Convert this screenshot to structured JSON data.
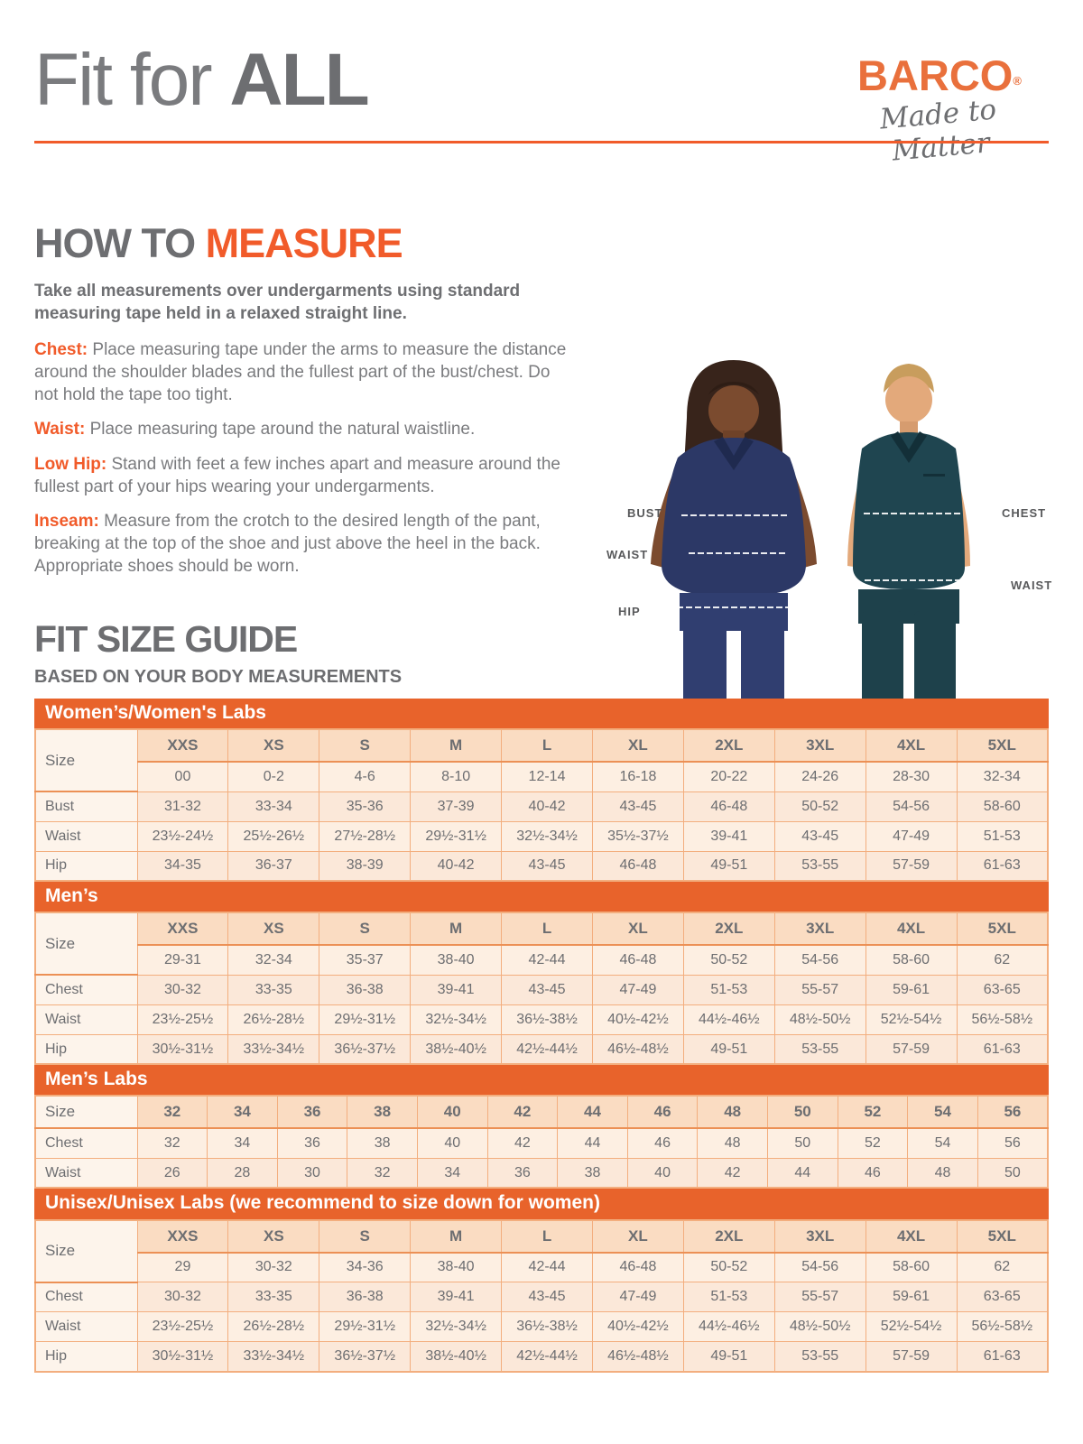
{
  "header": {
    "title_regular": "Fit for ",
    "title_bold": "ALL"
  },
  "logo": {
    "brand": "BARCO",
    "registered": "®",
    "tagline": "Made to Matter"
  },
  "how_to_measure": {
    "heading_gray": "HOW TO ",
    "heading_orange": "MEASURE",
    "intro": "Take all measurements over undergarments using standard measuring tape held in a relaxed straight line.",
    "items": [
      {
        "label": "Chest:",
        "text": "Place measuring tape under the arms to measure the distance around the shoulder blades and the fullest part of the bust/chest. Do not hold the tape too tight."
      },
      {
        "label": "Waist:",
        "text": "Place measuring tape around the natural waistline."
      },
      {
        "label": "Low Hip:",
        "text": "Stand with feet a few inches apart and measure around the fullest part of your hips wearing your undergarments."
      },
      {
        "label": "Inseam:",
        "text": "Measure from the crotch to the desired length of the pant, breaking at the top of the shoe and just above the heel in the back. Appropriate shoes should be worn."
      }
    ]
  },
  "figure": {
    "labels_left": [
      "BUST",
      "WAIST",
      "HIP"
    ],
    "labels_right": [
      "CHEST",
      "WAIST"
    ]
  },
  "size_guide": {
    "heading": "FIT SIZE GUIDE",
    "subheading": "BASED ON YOUR BODY MEASUREMENTS",
    "tables": [
      {
        "title": "Women’s/Women's Labs",
        "label_rowspan": true,
        "header": [
          "Size",
          "XXS",
          "XS",
          "S",
          "M",
          "L",
          "XL",
          "2XL",
          "3XL",
          "4XL",
          "5XL"
        ],
        "rows": [
          [
            "",
            "00",
            "0-2",
            "4-6",
            "8-10",
            "12-14",
            "16-18",
            "20-22",
            "24-26",
            "28-30",
            "32-34"
          ],
          [
            "Bust",
            "31-32",
            "33-34",
            "35-36",
            "37-39",
            "40-42",
            "43-45",
            "46-48",
            "50-52",
            "54-56",
            "58-60"
          ],
          [
            "Waist",
            "23½-24½",
            "25½-26½",
            "27½-28½",
            "29½-31½",
            "32½-34½",
            "35½-37½",
            "39-41",
            "43-45",
            "47-49",
            "51-53"
          ],
          [
            "Hip",
            "34-35",
            "36-37",
            "38-39",
            "40-42",
            "43-45",
            "46-48",
            "49-51",
            "53-55",
            "57-59",
            "61-63"
          ]
        ]
      },
      {
        "title": "Men’s",
        "label_rowspan": true,
        "header": [
          "Size",
          "XXS",
          "XS",
          "S",
          "M",
          "L",
          "XL",
          "2XL",
          "3XL",
          "4XL",
          "5XL"
        ],
        "rows": [
          [
            "",
            "29-31",
            "32-34",
            "35-37",
            "38-40",
            "42-44",
            "46-48",
            "50-52",
            "54-56",
            "58-60",
            "62"
          ],
          [
            "Chest",
            "30-32",
            "33-35",
            "36-38",
            "39-41",
            "43-45",
            "47-49",
            "51-53",
            "55-57",
            "59-61",
            "63-65"
          ],
          [
            "Waist",
            "23½-25½",
            "26½-28½",
            "29½-31½",
            "32½-34½",
            "36½-38½",
            "40½-42½",
            "44½-46½",
            "48½-50½",
            "52½-54½",
            "56½-58½"
          ],
          [
            "Hip",
            "30½-31½",
            "33½-34½",
            "36½-37½",
            "38½-40½",
            "42½-44½",
            "46½-48½",
            "49-51",
            "53-55",
            "57-59",
            "61-63"
          ]
        ]
      },
      {
        "title": "Men’s Labs",
        "label_rowspan": false,
        "header": [
          "Size",
          "32",
          "34",
          "36",
          "38",
          "40",
          "42",
          "44",
          "46",
          "48",
          "50",
          "52",
          "54",
          "56"
        ],
        "rows": [
          [
            "Chest",
            "32",
            "34",
            "36",
            "38",
            "40",
            "42",
            "44",
            "46",
            "48",
            "50",
            "52",
            "54",
            "56"
          ],
          [
            "Waist",
            "26",
            "28",
            "30",
            "32",
            "34",
            "36",
            "38",
            "40",
            "42",
            "44",
            "46",
            "48",
            "50"
          ]
        ]
      },
      {
        "title": "Unisex/Unisex Labs (we recommend to size down for women)",
        "label_rowspan": true,
        "header": [
          "Size",
          "XXS",
          "XS",
          "S",
          "M",
          "L",
          "XL",
          "2XL",
          "3XL",
          "4XL",
          "5XL"
        ],
        "rows": [
          [
            "",
            "29",
            "30-32",
            "34-36",
            "38-40",
            "42-44",
            "46-48",
            "50-52",
            "54-56",
            "58-60",
            "62"
          ],
          [
            "Chest",
            "30-32",
            "33-35",
            "36-38",
            "39-41",
            "43-45",
            "47-49",
            "51-53",
            "55-57",
            "59-61",
            "63-65"
          ],
          [
            "Waist",
            "23½-25½",
            "26½-28½",
            "29½-31½",
            "32½-34½",
            "36½-38½",
            "40½-42½",
            "44½-46½",
            "48½-50½",
            "52½-54½",
            "56½-58½"
          ],
          [
            "Hip",
            "30½-31½",
            "33½-34½",
            "36½-37½",
            "38½-40½",
            "42½-44½",
            "46½-48½",
            "49-51",
            "53-55",
            "57-59",
            "61-63"
          ]
        ]
      }
    ]
  },
  "colors": {
    "accent_orange": "#F15B2A",
    "banner_orange": "#E8632B",
    "logo_orange": "#E9703C",
    "text_gray": "#6D6E71",
    "table_header_peach": "#FADCC2",
    "table_row_light": "#FDEFE2",
    "table_row_dark": "#FBE8D9",
    "table_border": "#F3AE7E",
    "label_column_bg": "#FDF4EB",
    "scrubs_navy": "#2C3866",
    "scrubs_teal": "#1F4550"
  }
}
